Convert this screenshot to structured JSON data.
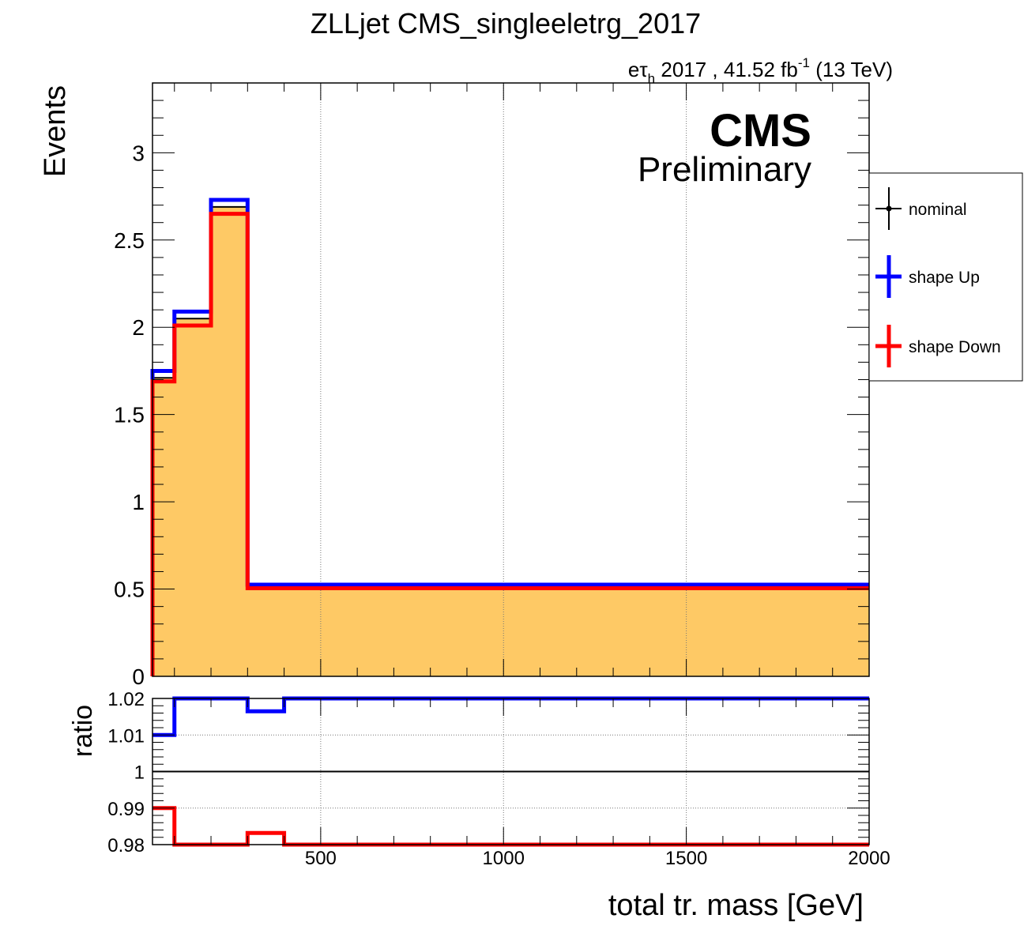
{
  "chart_data": {
    "type": "line",
    "title": "ZLLjet CMS_singleeletrg_2017",
    "lumi_label": {
      "e": "e",
      "tau": "τ",
      "sub": "h",
      "mid": " 2017 , 41.52 fb",
      "sup": "-1",
      "end": " (13 TeV)"
    },
    "cms_label": "CMS",
    "prelim_label": "Preliminary",
    "xlabel": "total tr. mass [GeV]",
    "ylabel": "Events",
    "ratio_ylabel": "ratio",
    "xlim": [
      40,
      2000
    ],
    "ylim": [
      0,
      3.4
    ],
    "ratio_ylim": [
      0.98,
      1.02
    ],
    "x_ticks": [
      500,
      1000,
      1500,
      2000
    ],
    "y_ticks": [
      0,
      0.5,
      1,
      1.5,
      2,
      2.5,
      3
    ],
    "y_tick_labels": [
      "0",
      "0.5",
      "1",
      "1.5",
      "2",
      "2.5",
      "3"
    ],
    "ratio_ticks": [
      0.98,
      0.99,
      1,
      1.01,
      1.02
    ],
    "ratio_tick_labels": [
      "0.98",
      "0.99",
      "1",
      "1.01",
      "1.02"
    ],
    "grid": true,
    "legend_position": "right, outside frame",
    "bin_edges": [
      40,
      100,
      200,
      300,
      400,
      2000
    ],
    "series": [
      {
        "name": "nominal",
        "color": "#000000",
        "fill": "#fec965",
        "values": [
          0.0,
          1.71,
          2.05,
          2.69,
          0.515,
          0.515
        ]
      },
      {
        "name": "shape Up",
        "color": "#0000ff",
        "values": [
          0.0,
          1.75,
          2.09,
          2.73,
          0.525,
          0.525
        ]
      },
      {
        "name": "shape Down",
        "color": "#ff0000",
        "values": [
          0.0,
          1.69,
          2.01,
          2.65,
          0.505,
          0.505
        ]
      }
    ],
    "ratio_series": [
      {
        "name": "shape Up",
        "color": "#0000ff",
        "values": [
          1.01,
          1.02,
          1.02,
          1.0165,
          1.02
        ]
      },
      {
        "name": "shape Down",
        "color": "#ff0000",
        "values": [
          0.99,
          0.98,
          0.98,
          0.9832,
          0.98
        ]
      }
    ]
  }
}
